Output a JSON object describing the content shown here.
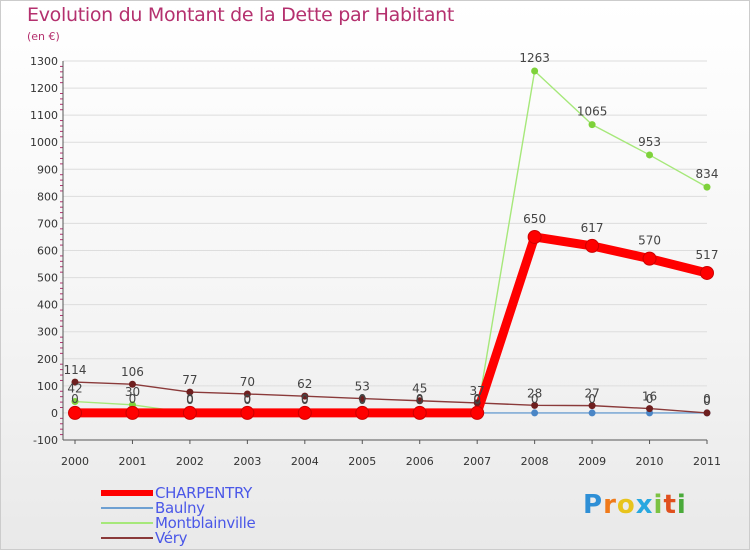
{
  "chart_data": {
    "type": "line",
    "title": "Evolution du Montant de la Dette par Habitant",
    "subtitle": "(en €)",
    "categories": [
      "2000",
      "2001",
      "2002",
      "2003",
      "2004",
      "2005",
      "2006",
      "2007",
      "2008",
      "2009",
      "2010",
      "2011"
    ],
    "yticks": [
      "1300",
      "1200",
      "1100",
      "1000",
      "900",
      "800",
      "700",
      "600",
      "500",
      "400",
      "300",
      "200",
      "100",
      "0",
      "-100"
    ],
    "ylim": [
      -100,
      1300
    ],
    "series": [
      {
        "name": "CHARPENTRY",
        "color": "#ff0000",
        "marker": "#ff0000",
        "values": [
          0,
          0,
          0,
          0,
          0,
          0,
          0,
          0,
          650,
          617,
          570,
          517
        ],
        "labels": [
          "",
          "",
          "",
          "",
          "",
          "",
          "",
          "",
          "650",
          "617",
          "570",
          "517"
        ]
      },
      {
        "name": "Baulny",
        "color": "#6ea0d2",
        "marker": "#4a86c6",
        "values": [
          0,
          0,
          0,
          0,
          0,
          0,
          0,
          0,
          0,
          0,
          0,
          0
        ],
        "labels": [
          "0",
          "0",
          "0",
          "0",
          "0",
          "0",
          "0",
          "0",
          "0",
          "0",
          "0",
          "0"
        ]
      },
      {
        "name": "Montblainville",
        "color": "#a6e87a",
        "marker": "#7ed23a",
        "values": [
          42,
          30,
          0,
          0,
          0,
          0,
          0,
          0,
          1263,
          1065,
          953,
          834
        ],
        "labels": [
          "42",
          "30",
          "0",
          "0",
          "0",
          "0",
          "0",
          "0",
          "1263",
          "1065",
          "953",
          "834"
        ]
      },
      {
        "name": "Véry",
        "color": "#8a3a3a",
        "marker": "#6e1f1f",
        "values": [
          114,
          106,
          77,
          70,
          62,
          53,
          45,
          37,
          28,
          27,
          16,
          0
        ],
        "labels": [
          "114",
          "106",
          "77",
          "70",
          "62",
          "53",
          "45",
          "37",
          "28",
          "27",
          "16",
          "0"
        ]
      }
    ]
  },
  "legend": {
    "items": [
      {
        "name": "CHARPENTRY",
        "color": "#ff0000"
      },
      {
        "name": "Baulny",
        "color": "#6ea0d2"
      },
      {
        "name": "Montblainville",
        "color": "#a6e87a"
      },
      {
        "name": "Véry",
        "color": "#8a3a3a"
      }
    ]
  },
  "logo": {
    "text": "Proxiti",
    "colors": [
      "#2e8fd6",
      "#f07a1a",
      "#e8c41c",
      "#28a8e0",
      "#7cc242",
      "#e0501e",
      "#4aaa3a"
    ]
  }
}
